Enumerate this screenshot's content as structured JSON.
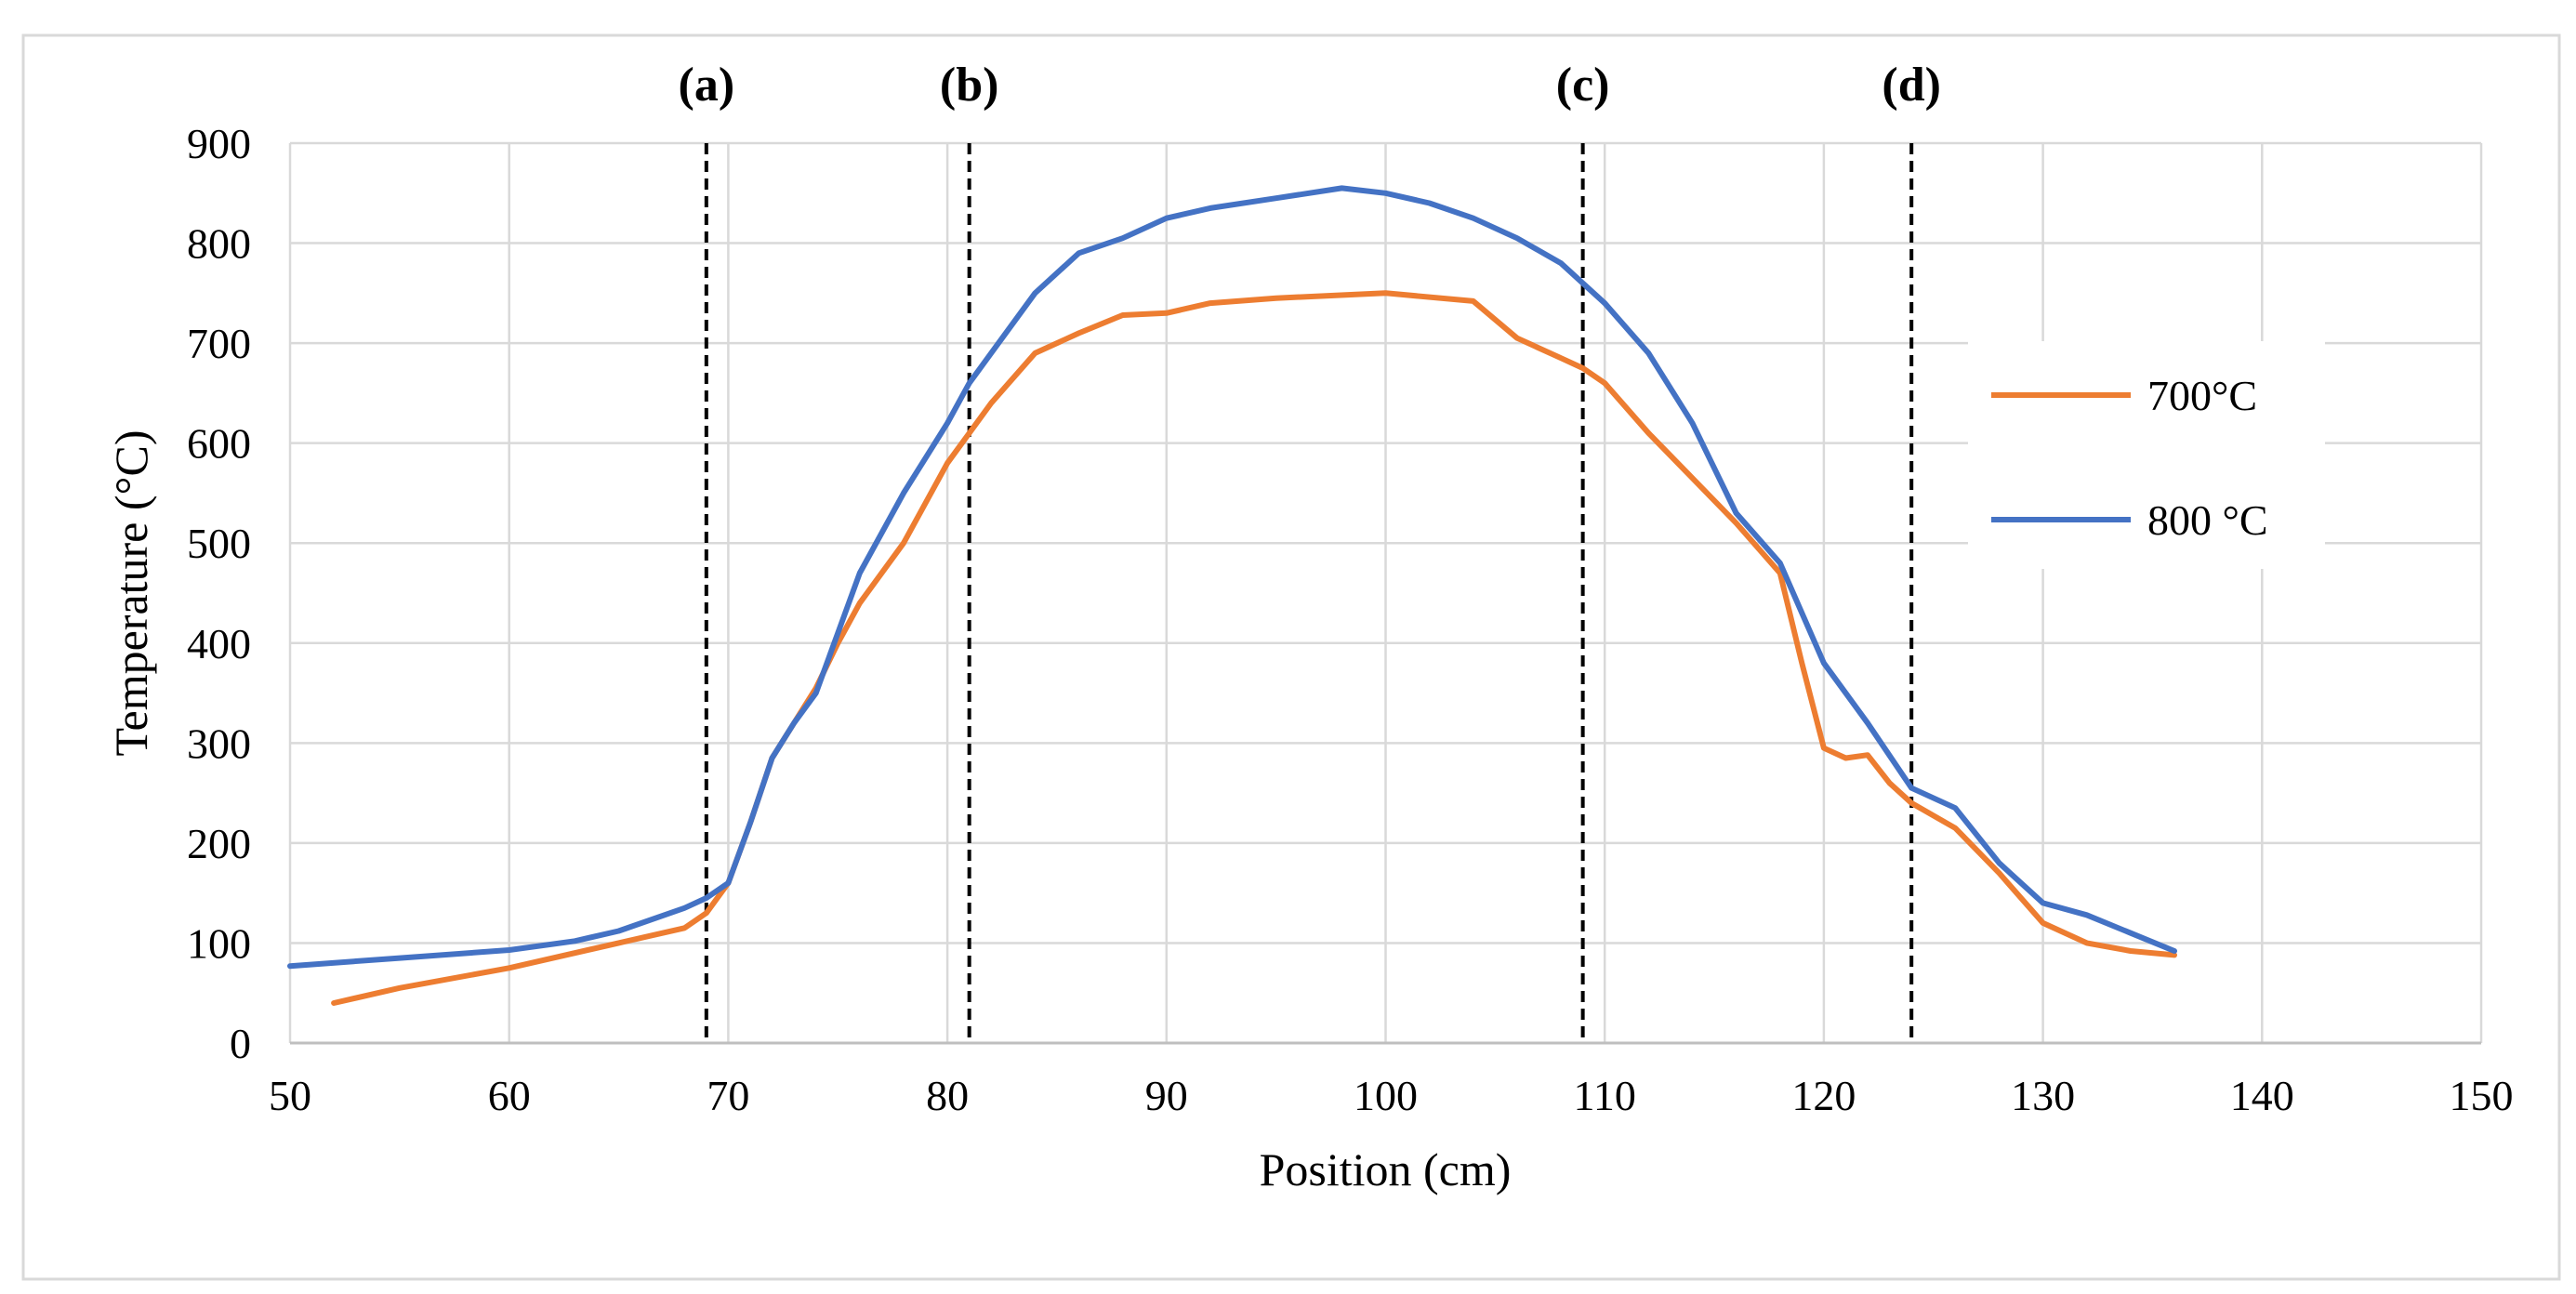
{
  "chart_data": {
    "type": "line",
    "title": "",
    "xlabel": "Position (cm)",
    "ylabel": "Temperature (°C)",
    "xlim": [
      50,
      150
    ],
    "ylim": [
      0,
      900
    ],
    "xticks": [
      50,
      60,
      70,
      80,
      90,
      100,
      110,
      120,
      130,
      140,
      150
    ],
    "yticks": [
      0,
      100,
      200,
      300,
      400,
      500,
      600,
      700,
      800,
      900
    ],
    "grid": true,
    "legend_position": "right",
    "markers": [
      {
        "label": "(a)",
        "x": 69
      },
      {
        "label": "(b)",
        "x": 81
      },
      {
        "label": "(c)",
        "x": 109
      },
      {
        "label": "(d)",
        "x": 124
      }
    ],
    "series": [
      {
        "name": "700°C",
        "color": "#ED7D31",
        "x": [
          52,
          55,
          60,
          65,
          68,
          69,
          70,
          71,
          72,
          73,
          74,
          75,
          76,
          78,
          80,
          81,
          82,
          84,
          86,
          88,
          90,
          92,
          95,
          100,
          104,
          106,
          108,
          109,
          110,
          112,
          114,
          116,
          118,
          119,
          120,
          121,
          122,
          123,
          124,
          126,
          128,
          130,
          132,
          134,
          136
        ],
        "y": [
          40,
          55,
          75,
          100,
          115,
          130,
          160,
          220,
          285,
          320,
          355,
          400,
          440,
          500,
          580,
          610,
          640,
          690,
          710,
          728,
          730,
          740,
          745,
          750,
          742,
          705,
          685,
          675,
          660,
          610,
          565,
          520,
          470,
          380,
          295,
          285,
          288,
          260,
          240,
          215,
          170,
          120,
          100,
          92,
          88
        ]
      },
      {
        "name": "800 °C",
        "color": "#4472C4",
        "x": [
          50,
          55,
          60,
          63,
          65,
          68,
          69,
          70,
          71,
          72,
          73,
          74,
          75,
          76,
          78,
          80,
          81,
          82,
          84,
          86,
          88,
          90,
          92,
          95,
          98,
          100,
          102,
          104,
          106,
          108,
          109,
          110,
          112,
          114,
          116,
          118,
          120,
          122,
          124,
          126,
          128,
          130,
          132,
          134,
          136
        ],
        "y": [
          77,
          85,
          93,
          102,
          112,
          135,
          145,
          160,
          220,
          285,
          320,
          350,
          410,
          470,
          550,
          620,
          660,
          690,
          750,
          790,
          805,
          825,
          835,
          845,
          855,
          850,
          840,
          825,
          805,
          780,
          760,
          740,
          690,
          620,
          530,
          480,
          380,
          320,
          255,
          235,
          180,
          140,
          128,
          110,
          92
        ]
      }
    ]
  }
}
